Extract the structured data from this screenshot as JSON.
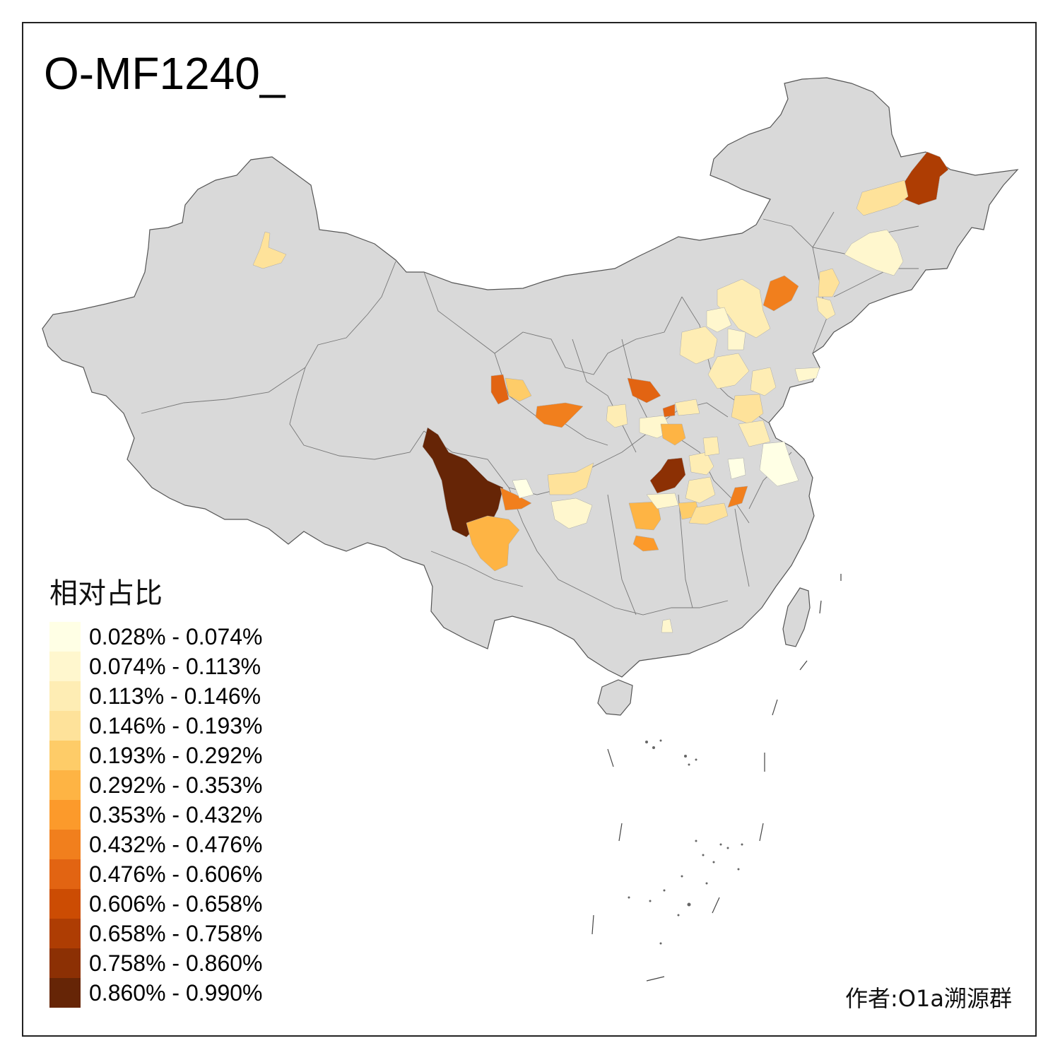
{
  "title": "O-MF1240_",
  "legend": {
    "title": "相对占比",
    "items": [
      {
        "label": "0.028% - 0.074%",
        "color": "#FFFFE5"
      },
      {
        "label": "0.074% - 0.113%",
        "color": "#FFF7CE"
      },
      {
        "label": "0.113% - 0.146%",
        "color": "#FEEDB4"
      },
      {
        "label": "0.146% - 0.193%",
        "color": "#FEE29A"
      },
      {
        "label": "0.193% - 0.292%",
        "color": "#FECC68"
      },
      {
        "label": "0.292% - 0.353%",
        "color": "#FEB444"
      },
      {
        "label": "0.353% - 0.432%",
        "color": "#FC9A2B"
      },
      {
        "label": "0.432% - 0.476%",
        "color": "#F17F1D"
      },
      {
        "label": "0.476% - 0.606%",
        "color": "#E26412"
      },
      {
        "label": "0.606% - 0.658%",
        "color": "#CC4C03"
      },
      {
        "label": "0.658% - 0.758%",
        "color": "#AE3D03"
      },
      {
        "label": "0.758% - 0.860%",
        "color": "#8C3004"
      },
      {
        "label": "0.860% - 0.990%",
        "color": "#662506"
      }
    ]
  },
  "author": "作者:O1a溯源群",
  "colors": {
    "land": "#D9D9D9",
    "border": "#555555"
  }
}
